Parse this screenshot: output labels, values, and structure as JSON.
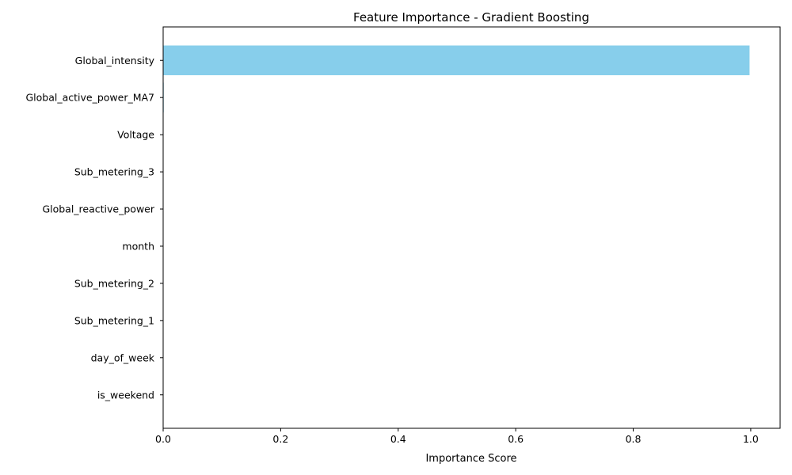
{
  "chart_data": {
    "type": "bar",
    "orientation": "horizontal",
    "title": "Feature Importance - Gradient Boosting",
    "xlabel": "Importance Score",
    "ylabel": "",
    "categories": [
      "Global_intensity",
      "Global_active_power_MA7",
      "Voltage",
      "Sub_metering_3",
      "Global_reactive_power",
      "month",
      "Sub_metering_2",
      "Sub_metering_1",
      "day_of_week",
      "is_weekend"
    ],
    "values": [
      0.998,
      0.001,
      0.0005,
      0.0003,
      0.0002,
      0.0001,
      0.0001,
      0.0,
      0.0,
      0.0
    ],
    "xlim": [
      0.0,
      1.05
    ],
    "xticks": [
      0.0,
      0.2,
      0.4,
      0.6,
      0.8,
      1.0
    ],
    "xtick_labels": [
      "0.0",
      "0.2",
      "0.4",
      "0.6",
      "0.8",
      "1.0"
    ],
    "bar_color": "#87CEEB",
    "grid": false,
    "legend": "none"
  }
}
